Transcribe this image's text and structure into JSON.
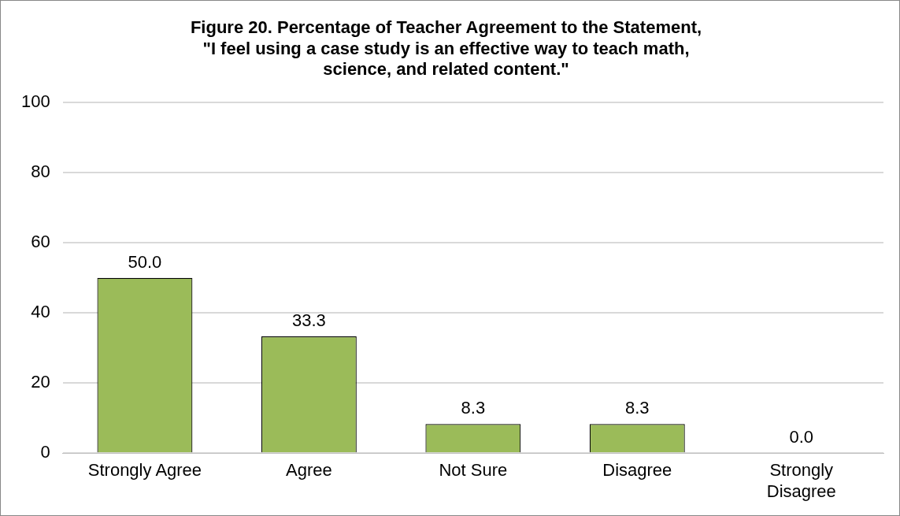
{
  "chart_data": {
    "type": "bar",
    "title": "Figure 20. Percentage of Teacher Agreement to the Statement,\n\"I feel using a case study is an effective way to teach math,\nscience, and related content.\"",
    "categories": [
      "Strongly Agree",
      "Agree",
      "Not Sure",
      "Disagree",
      "Strongly Disagree"
    ],
    "values": [
      50.0,
      33.3,
      8.3,
      8.3,
      0.0
    ],
    "value_labels": [
      "50.0",
      "33.3",
      "8.3",
      "8.3",
      "0.0"
    ],
    "color": "#9bbb59",
    "ylim": [
      0,
      100
    ],
    "yticks": [
      0,
      20,
      40,
      60,
      80,
      100
    ],
    "grid": "y",
    "legend": false
  }
}
